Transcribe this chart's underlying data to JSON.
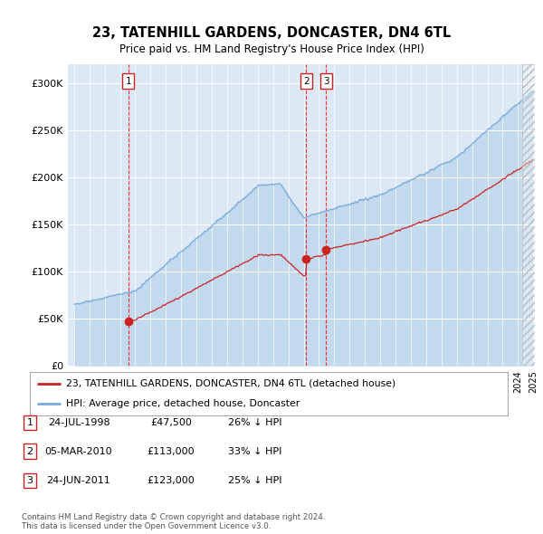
{
  "title": "23, TATENHILL GARDENS, DONCASTER, DN4 6TL",
  "subtitle": "Price paid vs. HM Land Registry's House Price Index (HPI)",
  "background_color": "#dce9f5",
  "plot_bg_color": "#dce9f5",
  "hpi_color": "#7aaadd",
  "price_color": "#cc2222",
  "transactions": [
    {
      "label": "1",
      "date": "24-JUL-1998",
      "price": 47500,
      "note": "26% ↓ HPI",
      "year": 1998.54
    },
    {
      "label": "2",
      "date": "05-MAR-2010",
      "price": 113000,
      "note": "33% ↓ HPI",
      "year": 2010.17
    },
    {
      "label": "3",
      "date": "24-JUN-2011",
      "price": 123000,
      "note": "25% ↓ HPI",
      "year": 2011.47
    }
  ],
  "legend_entries": [
    "23, TATENHILL GARDENS, DONCASTER, DN4 6TL (detached house)",
    "HPI: Average price, detached house, Doncaster"
  ],
  "footer": [
    "Contains HM Land Registry data © Crown copyright and database right 2024.",
    "This data is licensed under the Open Government Licence v3.0."
  ],
  "ylim": [
    0,
    320000
  ],
  "yticks": [
    0,
    50000,
    100000,
    150000,
    200000,
    250000,
    300000
  ],
  "ytick_labels": [
    "£0",
    "£50K",
    "£100K",
    "£150K",
    "£200K",
    "£250K",
    "£300K"
  ],
  "x_start_year": 1995,
  "x_end_year": 2025
}
